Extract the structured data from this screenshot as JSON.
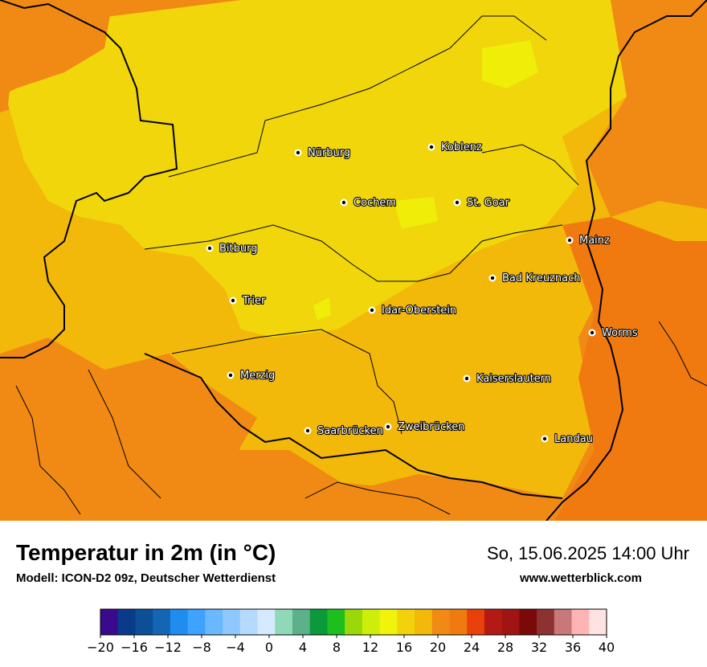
{
  "map": {
    "cities": [
      {
        "name": "Nürburg",
        "color": "#ffffff"
      },
      {
        "name": "Koblenz"
      },
      {
        "name": "Cochem"
      },
      {
        "name": "St. Goar"
      },
      {
        "name": "Mainz"
      },
      {
        "name": "Bitburg"
      },
      {
        "name": "Bad Kreuznach"
      },
      {
        "name": "Trier"
      },
      {
        "name": "Idar-Oberstein"
      },
      {
        "name": "Worms"
      },
      {
        "name": "Merzig"
      },
      {
        "name": "Kaiserslautern"
      },
      {
        "name": "Saarbrücken"
      },
      {
        "name": "Zweibrücken"
      },
      {
        "name": "Landau"
      }
    ],
    "colors": {
      "orange": "#f08a14",
      "deep_orange": "#f07a10",
      "amber": "#f2b80a",
      "yellow": "#f0d60a",
      "bright_yellow": "#f0ee08",
      "border": "#000000"
    }
  },
  "footer": {
    "title": "Temperatur in 2m (in °C)",
    "model": "Modell: ICON-D2 09z, Deutscher Wetterdienst",
    "datetime": "So, 15.06.2025 14:00 Uhr",
    "website": "www.wetterblick.com"
  },
  "legend": {
    "tick_labels": [
      "−20",
      "−16",
      "−12",
      "−8",
      "−4",
      "0",
      "4",
      "8",
      "12",
      "16",
      "20",
      "24",
      "28",
      "32",
      "36",
      "40"
    ],
    "colors": [
      "#3a0a8c",
      "#0a3a8a",
      "#0c4f96",
      "#1466b4",
      "#1f8cf0",
      "#3ea2ff",
      "#6ab8ff",
      "#8ec8ff",
      "#b4daff",
      "#d6eaff",
      "#8fd9b8",
      "#5cb08a",
      "#0a9a3a",
      "#1ebe1e",
      "#9ad80a",
      "#ccee0a",
      "#f0f40a",
      "#f2d20a",
      "#f2b80a",
      "#f08a14",
      "#f07a10",
      "#e8420a",
      "#b41a14",
      "#a01414",
      "#7a0a0a",
      "#8c3232",
      "#c87878",
      "#ffb4b4",
      "#ffe2e2"
    ]
  }
}
